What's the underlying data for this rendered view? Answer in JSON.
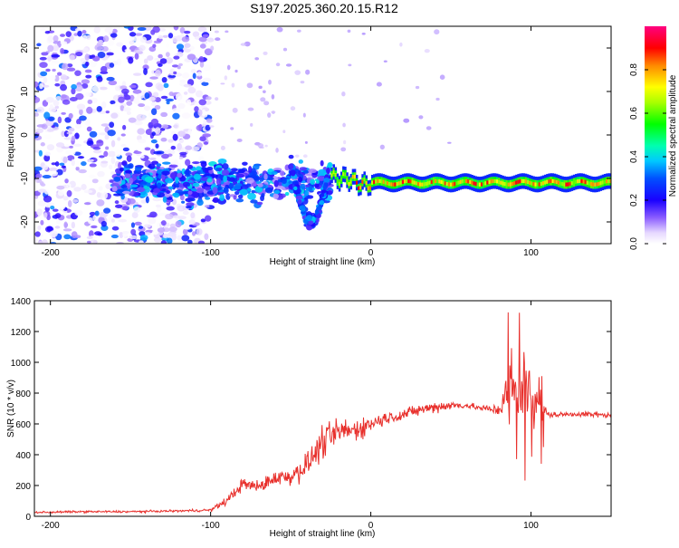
{
  "title": "S197.2025.360.20.15.R12",
  "colors": {
    "snr_line": "#e8302c",
    "spectro_bg": "#ffffff"
  },
  "chart_data": [
    {
      "type": "heatmap",
      "name": "spectrogram",
      "xlabel": "Height of straight line (km)",
      "ylabel": "Frequency (Hz)",
      "xlim": [
        -210,
        150
      ],
      "ylim": [
        -25,
        25
      ],
      "xticks": [
        -200,
        -100,
        0,
        100
      ],
      "yticks": [
        -20,
        -10,
        0,
        10,
        20
      ],
      "xtick_labels": [
        "-200",
        "-100",
        "0",
        "100"
      ],
      "ytick_labels": [
        "-20",
        "-10",
        "0",
        "10",
        "20"
      ],
      "colorbar": {
        "label": "Normalized spectral amplitude",
        "range": [
          0.0,
          1.0
        ],
        "ticks": [
          0.0,
          0.2,
          0.4,
          0.6,
          0.8
        ],
        "tick_labels": [
          "0.0",
          "0.2",
          "0.4",
          "0.6",
          "0.8"
        ]
      },
      "features": [
        {
          "kind": "noise",
          "x_range": [
            -210,
            -100
          ],
          "y_range": [
            -25,
            25
          ],
          "amplitude": 0.25
        },
        {
          "kind": "scatter-band",
          "x_range": [
            -160,
            -25
          ],
          "center": -11,
          "spread": 6,
          "amplitude": 0.3
        },
        {
          "kind": "dip",
          "x_range": [
            -50,
            -25
          ],
          "center": -20,
          "amplitude": 0.35
        },
        {
          "kind": "line",
          "x_range": [
            -25,
            150
          ],
          "center": -11,
          "amplitude": 0.95
        }
      ]
    },
    {
      "type": "line",
      "name": "snr",
      "xlabel": "Height of straight line (km)",
      "ylabel": "SNR (10 * v/v)",
      "xlim": [
        -210,
        150
      ],
      "ylim": [
        0,
        1400
      ],
      "xticks": [
        -200,
        -100,
        0,
        100
      ],
      "yticks": [
        0,
        200,
        400,
        600,
        800,
        1000,
        1200,
        1400
      ],
      "xtick_labels": [
        "-200",
        "-100",
        "0",
        "100"
      ],
      "ytick_labels": [
        "0",
        "200",
        "400",
        "600",
        "800",
        "1000",
        "1200",
        "1400"
      ],
      "series": [
        {
          "name": "SNR",
          "x": [
            -210,
            -180,
            -150,
            -120,
            -100,
            -90,
            -80,
            -70,
            -60,
            -50,
            -40,
            -30,
            -20,
            -10,
            0,
            10,
            20,
            30,
            40,
            50,
            60,
            70,
            80,
            85,
            90,
            95,
            100,
            105,
            110,
            120,
            130,
            140,
            150
          ],
          "y": [
            25,
            30,
            30,
            35,
            40,
            100,
            210,
            190,
            250,
            260,
            330,
            480,
            550,
            560,
            600,
            640,
            660,
            690,
            710,
            720,
            720,
            700,
            690,
            760,
            800,
            820,
            780,
            760,
            660,
            660,
            665,
            660,
            655
          ],
          "noise": [
            10,
            10,
            10,
            10,
            15,
            40,
            60,
            60,
            70,
            90,
            120,
            150,
            130,
            110,
            80,
            60,
            60,
            50,
            60,
            40,
            30,
            30,
            60,
            300,
            340,
            380,
            300,
            280,
            30,
            25,
            25,
            25,
            25
          ]
        }
      ]
    }
  ]
}
